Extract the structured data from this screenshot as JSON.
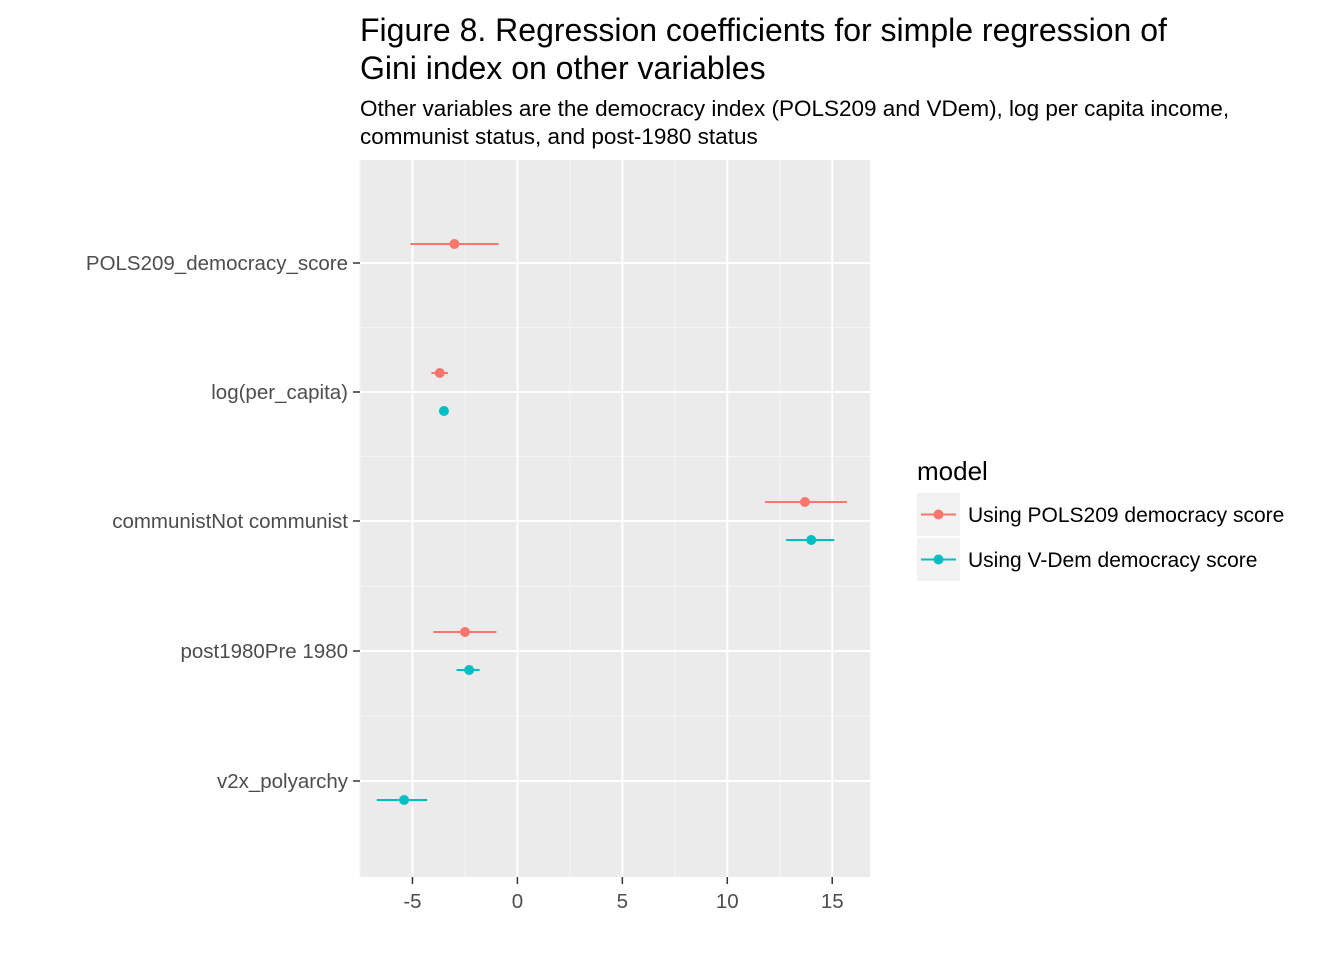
{
  "chart_data": {
    "type": "scatter",
    "title_lines": [
      "Figure 8. Regression coefficients for simple regression of",
      "Gini index on other variables"
    ],
    "subtitle_lines": [
      "Other variables are the democracy index (POLS209 and VDem), log per capita income,",
      "communist status, and post-1980 status"
    ],
    "xlabel": "",
    "ylabel": "",
    "categories": [
      "POLS209_democracy_score",
      "log(per_capita)",
      "communistNot communist",
      "post1980Pre 1980",
      "v2x_polyarchy"
    ],
    "xlim": [
      -7.5,
      16.8
    ],
    "x_ticks": [
      -5,
      0,
      5,
      10,
      15
    ],
    "x_tick_labels": [
      "-5",
      "0",
      "5",
      "10",
      "15"
    ],
    "grid": true,
    "legend": {
      "title": "model",
      "placement": "right"
    },
    "series": [
      {
        "name": "Using POLS209 democracy score",
        "color": "#F8766D",
        "points": [
          {
            "category": "POLS209_democracy_score",
            "estimate": -3.0,
            "low": -5.1,
            "high": -0.9
          },
          {
            "category": "log(per_capita)",
            "estimate": -3.7,
            "low": -4.1,
            "high": -3.3
          },
          {
            "category": "communistNot communist",
            "estimate": 13.7,
            "low": 11.8,
            "high": 15.7
          },
          {
            "category": "post1980Pre 1980",
            "estimate": -2.5,
            "low": -4.0,
            "high": -1.0
          }
        ]
      },
      {
        "name": "Using V-Dem democracy score",
        "color": "#00BFC4",
        "points": [
          {
            "category": "log(per_capita)",
            "estimate": -3.5,
            "low": -3.7,
            "high": -3.3
          },
          {
            "category": "communistNot communist",
            "estimate": 14.0,
            "low": 12.8,
            "high": 15.1
          },
          {
            "category": "post1980Pre 1980",
            "estimate": -2.3,
            "low": -2.9,
            "high": -1.8
          },
          {
            "category": "v2x_polyarchy",
            "estimate": -5.4,
            "low": -6.7,
            "high": -4.3
          }
        ]
      }
    ]
  }
}
